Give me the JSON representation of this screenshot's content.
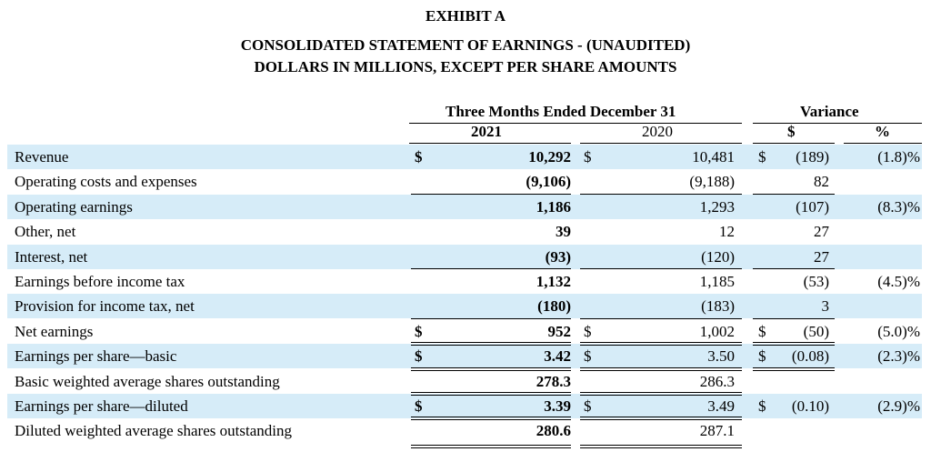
{
  "header": {
    "exhibit": "EXHIBIT A",
    "title": "CONSOLIDATED STATEMENT OF EARNINGS - (UNAUDITED)",
    "subtitle": "DOLLARS IN MILLIONS, EXCEPT PER SHARE AMOUNTS"
  },
  "columns": {
    "period": "Three Months Ended December 31",
    "year_current": "2021",
    "year_prior": "2020",
    "variance": "Variance",
    "var_dollar": "$",
    "var_pct": "%"
  },
  "rows": [
    {
      "label": "Revenue",
      "c_sign": "$",
      "c_val": "10,292",
      "p_sign": "$",
      "p_val": "10,481",
      "v_sign": "$",
      "v_val": "(189)",
      "pct": "(1.8)%"
    },
    {
      "label": "Operating costs and expenses",
      "c_sign": "",
      "c_val": "(9,106)",
      "p_sign": "",
      "p_val": "(9,188)",
      "v_sign": "",
      "v_val": "82",
      "pct": ""
    },
    {
      "label": "Operating earnings",
      "c_sign": "",
      "c_val": "1,186",
      "p_sign": "",
      "p_val": "1,293",
      "v_sign": "",
      "v_val": "(107)",
      "pct": "(8.3)%"
    },
    {
      "label": "Other, net",
      "c_sign": "",
      "c_val": "39",
      "p_sign": "",
      "p_val": "12",
      "v_sign": "",
      "v_val": "27",
      "pct": ""
    },
    {
      "label": "Interest, net",
      "c_sign": "",
      "c_val": "(93)",
      "p_sign": "",
      "p_val": "(120)",
      "v_sign": "",
      "v_val": "27",
      "pct": ""
    },
    {
      "label": "Earnings before income tax",
      "c_sign": "",
      "c_val": "1,132",
      "p_sign": "",
      "p_val": "1,185",
      "v_sign": "",
      "v_val": "(53)",
      "pct": "(4.5)%"
    },
    {
      "label": "Provision for income tax, net",
      "c_sign": "",
      "c_val": "(180)",
      "p_sign": "",
      "p_val": "(183)",
      "v_sign": "",
      "v_val": "3",
      "pct": ""
    },
    {
      "label": "Net earnings",
      "c_sign": "$",
      "c_val": "952",
      "p_sign": "$",
      "p_val": "1,002",
      "v_sign": "$",
      "v_val": "(50)",
      "pct": "(5.0)%"
    },
    {
      "label": "Earnings per share—basic",
      "c_sign": "$",
      "c_val": "3.42",
      "p_sign": "$",
      "p_val": "3.50",
      "v_sign": "$",
      "v_val": "(0.08)",
      "pct": "(2.3)%"
    },
    {
      "label": "Basic weighted average shares outstanding",
      "c_sign": "",
      "c_val": "278.3",
      "p_sign": "",
      "p_val": "286.3",
      "v_sign": "",
      "v_val": "",
      "pct": ""
    },
    {
      "label": "Earnings per share—diluted",
      "c_sign": "$",
      "c_val": "3.39",
      "p_sign": "$",
      "p_val": "3.49",
      "v_sign": "$",
      "v_val": "(0.10)",
      "pct": "(2.9)%"
    },
    {
      "label": "Diluted weighted average shares outstanding",
      "c_sign": "",
      "c_val": "280.6",
      "p_sign": "",
      "p_val": "287.1",
      "v_sign": "",
      "v_val": "",
      "pct": ""
    }
  ]
}
